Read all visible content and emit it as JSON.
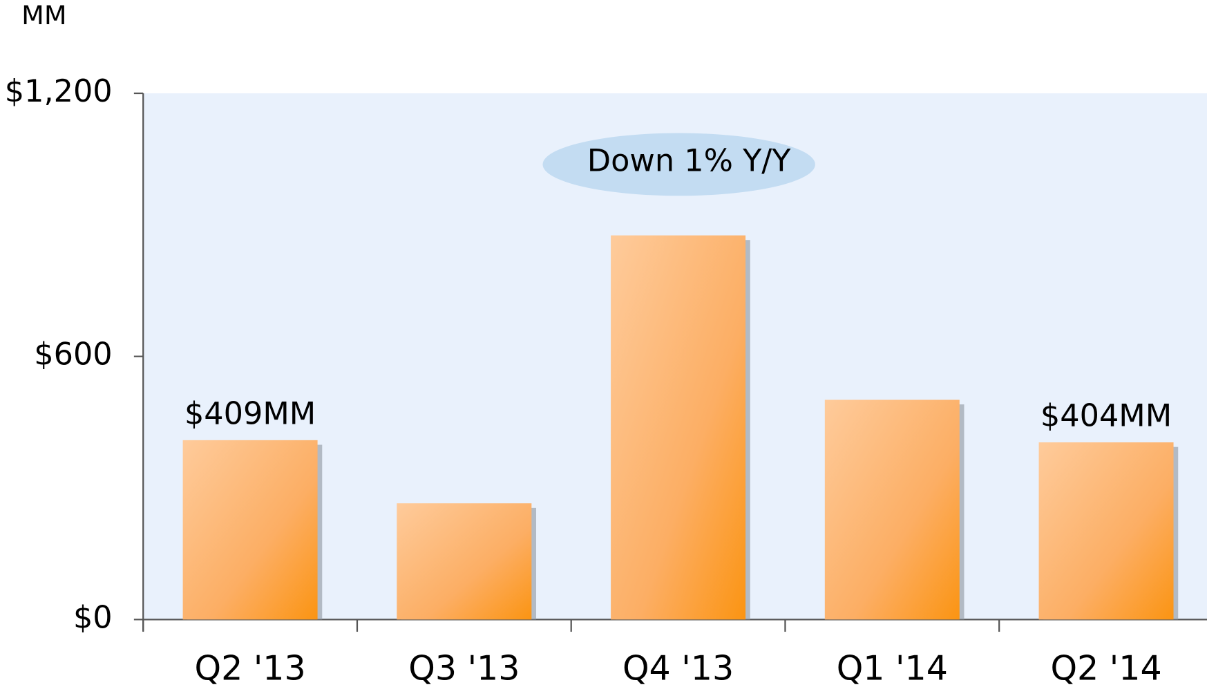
{
  "chart_data": {
    "type": "bar",
    "unit_label": "MM",
    "annotation": "Down 1% Y/Y",
    "categories": [
      "Q2 '13",
      "Q3 '13",
      "Q4 '13",
      "Q1 '14",
      "Q2 '14"
    ],
    "values": [
      409,
      265,
      876,
      501,
      404
    ],
    "value_labels": [
      "$409MM",
      null,
      null,
      null,
      "$404MM"
    ],
    "color": "#fb9a2a",
    "ylim": [
      0,
      1200
    ],
    "yticks": [
      {
        "value": 0,
        "label": "$0"
      },
      {
        "value": 600,
        "label": "$600"
      },
      {
        "value": 1200,
        "label": "$1,200"
      }
    ],
    "grid": false
  }
}
